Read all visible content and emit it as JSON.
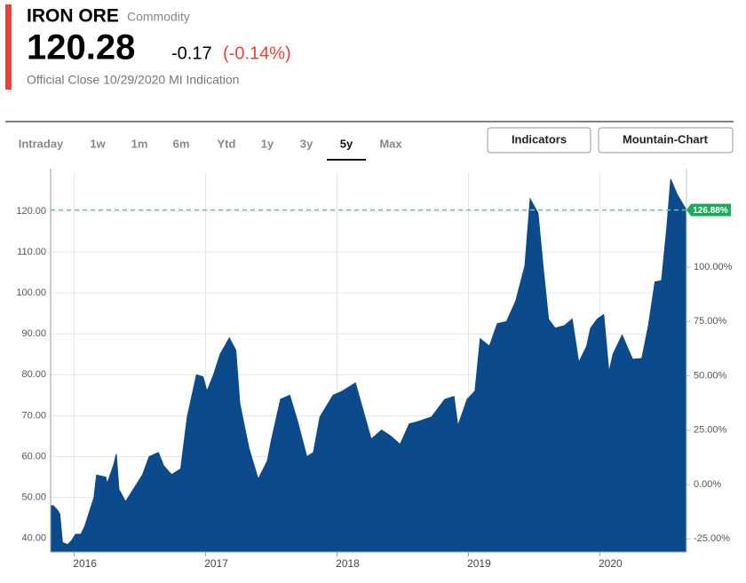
{
  "header": {
    "title": "IRON ORE",
    "subtitle": "Commodity",
    "price": "120.28",
    "change": "-0.17",
    "change_pct": "(-0.14%)",
    "note": "Official Close 10/29/2020 MI Indication"
  },
  "tabs": [
    "Intraday",
    "1w",
    "1m",
    "6m",
    "Ytd",
    "1y",
    "3y",
    "5y",
    "Max"
  ],
  "selected_tab": 7,
  "buttons": [
    "Indicators",
    "Mountain-Chart"
  ],
  "chart_data": {
    "type": "area",
    "color": "#0b4a8b",
    "x": [
      2015.82,
      2015.84,
      2015.87,
      2015.89,
      2015.91,
      2015.95,
      2015.98,
      2016.01,
      2016.05,
      2016.08,
      2016.11,
      2016.15,
      2016.17,
      2016.24,
      2016.25,
      2016.3,
      2016.32,
      2016.34,
      2016.39,
      2016.45,
      2016.52,
      2016.57,
      2016.64,
      2016.68,
      2016.74,
      2016.81,
      2016.86,
      2016.93,
      2016.98,
      2017.01,
      2017.06,
      2017.11,
      2017.18,
      2017.23,
      2017.26,
      2017.33,
      2017.4,
      2017.47,
      2017.5,
      2017.57,
      2017.64,
      2017.7,
      2017.77,
      2017.82,
      2017.87,
      2017.97,
      2018.04,
      2018.14,
      2018.21,
      2018.26,
      2018.34,
      2018.41,
      2018.48,
      2018.55,
      2018.61,
      2018.72,
      2018.82,
      2018.89,
      2018.92,
      2018.99,
      2019.05,
      2019.09,
      2019.16,
      2019.22,
      2019.29,
      2019.36,
      2019.43,
      2019.47,
      2019.53,
      2019.57,
      2019.61,
      2019.66,
      2019.73,
      2019.79,
      2019.84,
      2019.9,
      2019.93,
      2019.98,
      2020.03,
      2020.07,
      2020.1,
      2020.17,
      2020.22,
      2020.25,
      2020.32,
      2020.37,
      2020.42,
      2020.47,
      2020.51,
      2020.54,
      2020.59,
      2020.64,
      2020.66
    ],
    "values": [
      48,
      48,
      47,
      46,
      39,
      38.5,
      39.5,
      41,
      41,
      43,
      46,
      50,
      55.5,
      55,
      53.4,
      58,
      60.6,
      52,
      49,
      52,
      55.6,
      60,
      61,
      57.8,
      55.6,
      57,
      69.7,
      80,
      79.5,
      76,
      80,
      85,
      89,
      86,
      73,
      62,
      54.5,
      59,
      64,
      74,
      75,
      68.6,
      60,
      61,
      69.7,
      75,
      76,
      78,
      70,
      64.3,
      66.5,
      65,
      63,
      68,
      68.5,
      69.7,
      74,
      74.7,
      67.5,
      74,
      76,
      88.8,
      87,
      92.5,
      93,
      98,
      106.6,
      123,
      119.5,
      106,
      93.6,
      91.4,
      92,
      93.6,
      83,
      87,
      91.4,
      93.6,
      94.7,
      80.6,
      85,
      89.7,
      86,
      83.8,
      84,
      92,
      102.7,
      103,
      116,
      127.8,
      124,
      121.3,
      120.28
    ],
    "xlim": [
      2015.82,
      2020.66
    ],
    "xticks": [
      2016,
      2017,
      2018,
      2019,
      2020
    ],
    "ylim": [
      36.7,
      129.3
    ],
    "yticks": [
      {
        "value": 40,
        "label": "40.00"
      },
      {
        "value": 50,
        "label": "50.00"
      },
      {
        "value": 60,
        "label": "60.00"
      },
      {
        "value": 70,
        "label": "70.00"
      },
      {
        "value": 80,
        "label": "80.00"
      },
      {
        "value": 90,
        "label": "90.00"
      },
      {
        "value": 100,
        "label": "100.00"
      },
      {
        "value": 110,
        "label": "110.00"
      },
      {
        "value": 120,
        "label": "120.00"
      }
    ],
    "y2lim": [
      -31.0,
      143.3
    ],
    "y2ticks": [
      {
        "value": -25,
        "label": "-25.00%"
      },
      {
        "value": 0,
        "label": "0.00%"
      },
      {
        "value": 25,
        "label": "25.00%"
      },
      {
        "value": 50,
        "label": "50.00%"
      },
      {
        "value": 75,
        "label": "75.00%"
      },
      {
        "value": 100,
        "label": "100.00%"
      }
    ],
    "last_label": "126.88%",
    "grid": true
  }
}
